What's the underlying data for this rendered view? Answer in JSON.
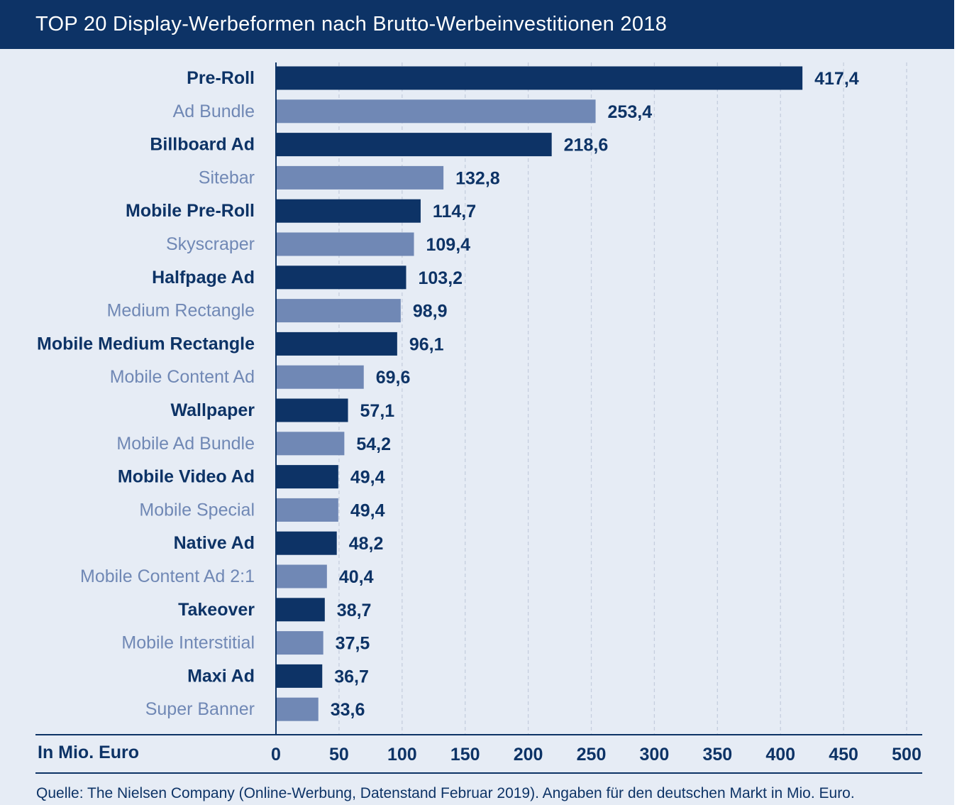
{
  "header": {
    "title": "TOP 20 Display-Werbeformen nach Brutto-Werbeinvestitionen 2018"
  },
  "colors": {
    "dark": "#0d3366",
    "light": "#7088b5",
    "background": "#e6ecf5",
    "grid": "#c5cede"
  },
  "chart_data": {
    "type": "bar",
    "orientation": "horizontal",
    "title": "TOP 20 Display-Werbeformen nach Brutto-Werbeinvestitionen 2018",
    "xlabel": "In Mio. Euro",
    "xlim": [
      0,
      500
    ],
    "ticks": [
      0,
      50,
      100,
      150,
      200,
      250,
      300,
      350,
      400,
      450,
      500
    ],
    "categories": [
      "Pre-Roll",
      "Ad Bundle",
      "Billboard Ad",
      "Sitebar",
      "Mobile Pre-Roll",
      "Skyscraper",
      "Halfpage Ad",
      "Medium Rectangle",
      "Mobile Medium Rectangle",
      "Mobile Content Ad",
      "Wallpaper",
      "Mobile Ad Bundle",
      "Mobile Video Ad",
      "Mobile Special",
      "Native Ad",
      "Mobile Content Ad 2:1",
      "Takeover",
      "Mobile Interstitial",
      "Maxi Ad",
      "Super Banner"
    ],
    "values": [
      417.4,
      253.4,
      218.6,
      132.8,
      114.7,
      109.4,
      103.2,
      98.9,
      96.1,
      69.6,
      57.1,
      54.2,
      49.4,
      49.4,
      48.2,
      40.4,
      38.7,
      37.5,
      36.7,
      33.6
    ],
    "value_labels": [
      "417,4",
      "253,4",
      "218,6",
      "132,8",
      "114,7",
      "109,4",
      "103,2",
      "98,9",
      "96,1",
      "69,6",
      "57,1",
      "54,2",
      "49,4",
      "49,4",
      "48,2",
      "40,4",
      "38,7",
      "37,5",
      "36,7",
      "33,6"
    ],
    "grid": true
  },
  "source": "Quelle: The Nielsen Company (Online-Werbung, Datenstand Februar 2019). Angaben für den deutschen Markt in Mio. Euro."
}
